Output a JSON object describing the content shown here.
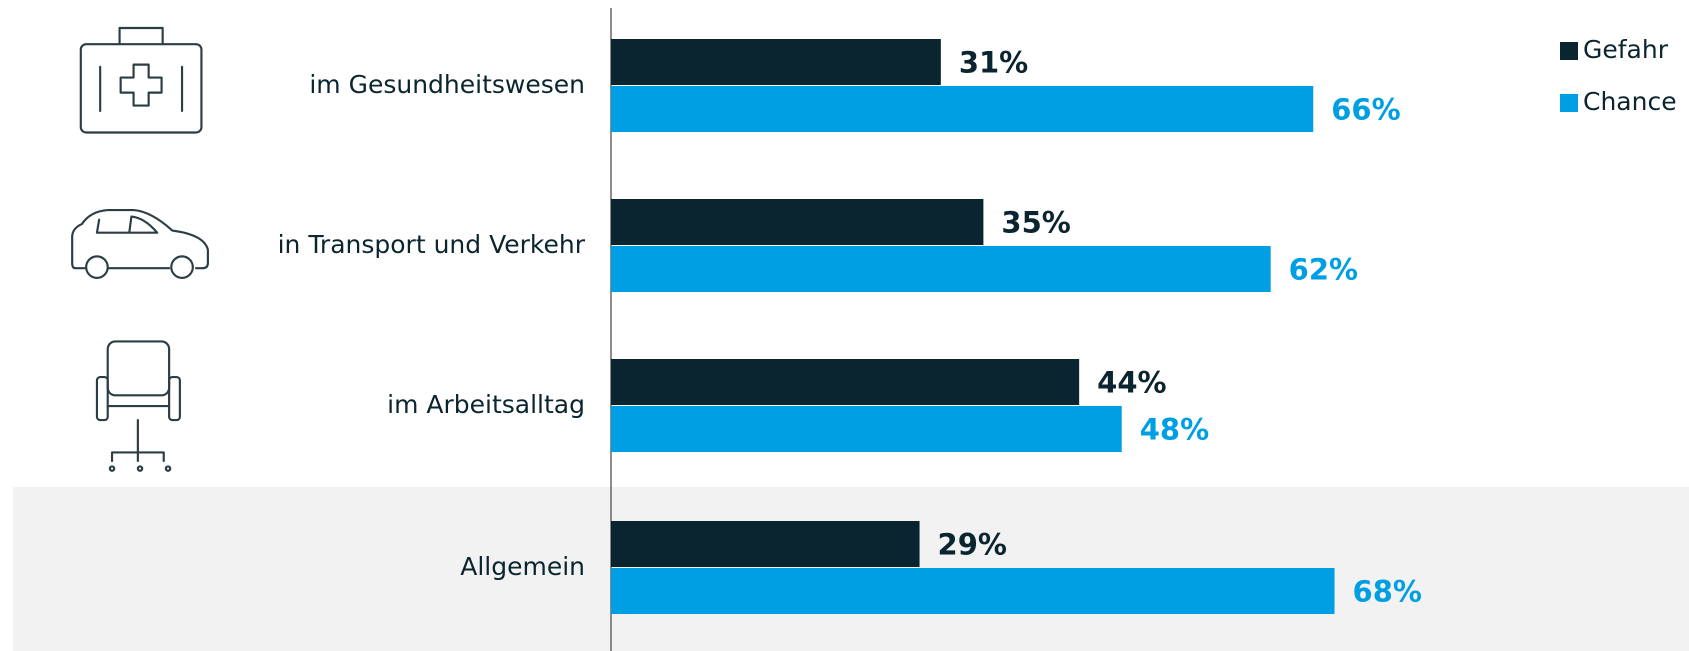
{
  "chart_data": {
    "type": "hbar",
    "categories": [
      "im Gesundheitswesen",
      "in Transport und Verkehr",
      "im Arbeitsalltag",
      "Allgemein"
    ],
    "series": [
      {
        "name": "Gefahr",
        "color": "#0b2530",
        "values": [
          31,
          35,
          44,
          29
        ],
        "value_labels": [
          "31%",
          "35%",
          "44%",
          "29%"
        ]
      },
      {
        "name": "Chance",
        "color": "#009fe3",
        "values": [
          66,
          62,
          48,
          68
        ],
        "value_labels": [
          "66%",
          "62%",
          "48%",
          "68%"
        ]
      }
    ],
    "xlim": [
      0,
      100
    ],
    "legend": "top-right"
  }
}
